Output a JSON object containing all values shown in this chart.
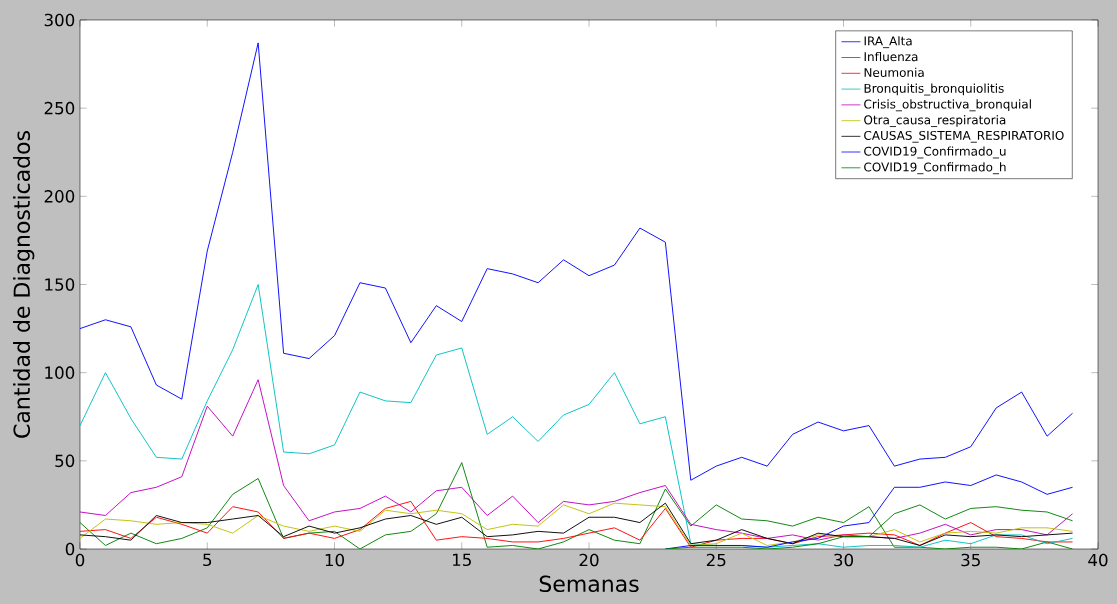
{
  "chart_data": {
    "type": "line",
    "xlabel": "Semanas",
    "ylabel": "Cantidad de Diagnosticados",
    "x": [
      0,
      1,
      2,
      3,
      4,
      5,
      6,
      7,
      8,
      9,
      10,
      11,
      12,
      13,
      14,
      15,
      16,
      17,
      18,
      19,
      20,
      21,
      22,
      23,
      24,
      25,
      26,
      27,
      28,
      29,
      30,
      31,
      32,
      33,
      34,
      35,
      36,
      37,
      38,
      39
    ],
    "xlim": [
      0,
      40
    ],
    "ylim": [
      0,
      300
    ],
    "xticks": [
      0,
      5,
      10,
      15,
      20,
      25,
      30,
      35,
      40
    ],
    "yticks": [
      0,
      50,
      100,
      150,
      200,
      250,
      300
    ],
    "grid": false,
    "legend": "top right",
    "marker": "none",
    "line_style": "solid",
    "series": [
      {
        "name": "IRA_Alta",
        "color": "#0000ff",
        "values": [
          125,
          130,
          126,
          93,
          85,
          169,
          225,
          287,
          111,
          108,
          121,
          151,
          148,
          117,
          138,
          129,
          159,
          156,
          151,
          164,
          155,
          161,
          182,
          174,
          39,
          47,
          52,
          47,
          65,
          72,
          67,
          70,
          47,
          51,
          52,
          58,
          80,
          89,
          64,
          77
        ]
      },
      {
        "name": "Influenza",
        "color": "#008000",
        "values": [
          15,
          2,
          9,
          3,
          6,
          12,
          31,
          40,
          6,
          9,
          10,
          0,
          8,
          10,
          20,
          49,
          1,
          2,
          0,
          4,
          11,
          5,
          3,
          34,
          13,
          25,
          17,
          16,
          13,
          18,
          15,
          24,
          1,
          1,
          0,
          1,
          1,
          0,
          4,
          0
        ]
      },
      {
        "name": "Neumonia",
        "color": "#ff0000",
        "values": [
          10,
          11,
          6,
          18,
          14,
          9,
          24,
          21,
          6,
          9,
          6,
          11,
          23,
          27,
          5,
          7,
          6,
          4,
          4,
          6,
          9,
          12,
          5,
          23,
          1,
          5,
          6,
          6,
          3,
          7,
          8,
          9,
          8,
          2,
          9,
          15,
          7,
          6,
          4,
          4
        ]
      },
      {
        "name": "Bronquitis_bronquiolitis",
        "color": "#00bfbf",
        "values": [
          70,
          100,
          74,
          52,
          51,
          84,
          113,
          150,
          55,
          54,
          59,
          89,
          84,
          83,
          110,
          114,
          65,
          75,
          61,
          76,
          82,
          100,
          71,
          75,
          3,
          2,
          2,
          1,
          2,
          3,
          1,
          2,
          2,
          1,
          5,
          3,
          8,
          8,
          3,
          6
        ]
      },
      {
        "name": "Crisis_obstructiva_bronquial",
        "color": "#bf00bf",
        "values": [
          21,
          19,
          32,
          35,
          41,
          81,
          64,
          96,
          36,
          16,
          21,
          23,
          30,
          21,
          33,
          35,
          19,
          30,
          15,
          27,
          25,
          27,
          32,
          36,
          14,
          11,
          9,
          6,
          8,
          5,
          8,
          7,
          6,
          9,
          14,
          8,
          11,
          11,
          8,
          20
        ]
      },
      {
        "name": "Otra_causa_respiratoria",
        "color": "#bfbf00",
        "values": [
          6,
          17,
          16,
          14,
          15,
          14,
          9,
          19,
          13,
          10,
          13,
          10,
          22,
          20,
          22,
          20,
          11,
          14,
          13,
          25,
          20,
          26,
          25,
          24,
          2,
          3,
          9,
          2,
          4,
          8,
          7,
          7,
          11,
          4,
          9,
          10,
          9,
          12,
          12,
          10
        ]
      },
      {
        "name": "CAUSAS_SISTEMA_RESPIRATORIO",
        "color": "#000000",
        "values": [
          8,
          7,
          5,
          19,
          15,
          15,
          17,
          19,
          7,
          13,
          9,
          12,
          17,
          19,
          14,
          18,
          7,
          8,
          10,
          9,
          18,
          18,
          15,
          26,
          3,
          5,
          11,
          6,
          3,
          9,
          7,
          7,
          6,
          2,
          8,
          7,
          8,
          7,
          8,
          9
        ]
      },
      {
        "name": "COVID19_Confirmado_u",
        "color": "#0000ff",
        "values": [
          null,
          null,
          null,
          null,
          null,
          null,
          null,
          null,
          null,
          null,
          null,
          null,
          null,
          null,
          null,
          null,
          null,
          null,
          null,
          null,
          null,
          null,
          null,
          0,
          2,
          2,
          2,
          1,
          4,
          6,
          13,
          15,
          35,
          35,
          38,
          36,
          42,
          38,
          31,
          35
        ]
      },
      {
        "name": "COVID19_Confirmado_h",
        "color": "#008000",
        "values": [
          null,
          null,
          null,
          null,
          null,
          null,
          null,
          null,
          null,
          null,
          null,
          null,
          null,
          null,
          null,
          null,
          null,
          null,
          null,
          null,
          null,
          null,
          null,
          0,
          1,
          1,
          1,
          0,
          1,
          3,
          7,
          7,
          20,
          25,
          17,
          23,
          24,
          22,
          21,
          16
        ]
      }
    ]
  }
}
